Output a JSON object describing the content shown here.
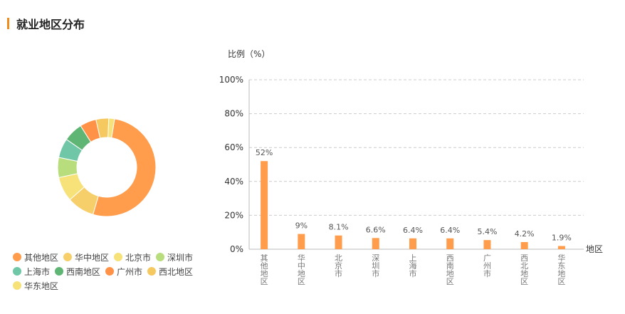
{
  "section": {
    "title": "就业地区分布"
  },
  "colors": {
    "accent": "#f08c1e",
    "bar": "#ff9d4d",
    "grid": "#cccccc",
    "slices": [
      "#ff9d4d",
      "#f7cf6a",
      "#f7e27a",
      "#b8dd7c",
      "#6fc7a8",
      "#5fb573",
      "#ff9247",
      "#f6c860",
      "#f7e27a"
    ]
  },
  "chart_data": {
    "type": "bar",
    "ylabel": "比例（%）",
    "xlabel": "地区",
    "ylim": [
      0,
      100
    ],
    "yticks": [
      "0%",
      "20%",
      "40%",
      "60%",
      "80%",
      "100%"
    ],
    "categories": [
      "其他地区",
      "华中地区",
      "北京市",
      "深圳市",
      "上海市",
      "西南地区",
      "广州市",
      "西北地区",
      "华东地区"
    ],
    "values": [
      52,
      9,
      8.1,
      6.6,
      6.4,
      6.4,
      5.4,
      4.2,
      1.9
    ],
    "value_labels": [
      "52%",
      "9%",
      "8.1%",
      "6.6%",
      "6.4%",
      "6.4%",
      "5.4%",
      "4.2%",
      "1.9%"
    ],
    "grid": true
  },
  "donut": {
    "type": "pie",
    "labels": [
      "其他地区",
      "华中地区",
      "北京市",
      "深圳市",
      "上海市",
      "西南地区",
      "广州市",
      "西北地区",
      "华东地区"
    ],
    "values": [
      52,
      9,
      8.1,
      6.6,
      6.4,
      6.4,
      5.4,
      4.2,
      1.9
    ]
  }
}
